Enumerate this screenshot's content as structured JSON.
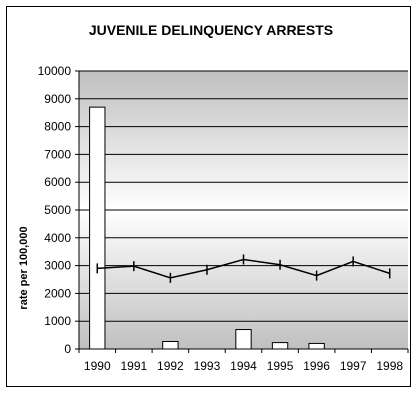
{
  "chart_data": {
    "type": "bar",
    "title": "JUVENILE DELINQUENCY ARRESTS",
    "xlabel": "",
    "ylabel": "rate per 100,000",
    "categories": [
      "1990",
      "1991",
      "1992",
      "1993",
      "1994",
      "1995",
      "1996",
      "1997",
      "1998"
    ],
    "ylim": [
      0,
      10000
    ],
    "y_ticks": [
      "0",
      "1000",
      "2000",
      "3000",
      "4000",
      "5000",
      "6000",
      "7000",
      "8000",
      "9000",
      "10000"
    ],
    "grid": true,
    "series": [
      {
        "type": "bar",
        "color": "#ffffff",
        "values": [
          8700,
          0,
          270,
          0,
          700,
          230,
          200,
          0,
          0
        ]
      },
      {
        "type": "line",
        "color": "#000000",
        "values": [
          2900,
          2980,
          2560,
          2850,
          3220,
          3030,
          2640,
          3150,
          2720
        ]
      }
    ],
    "plot_background_gradient": [
      "#c0c0c0",
      "#ffffff"
    ]
  }
}
